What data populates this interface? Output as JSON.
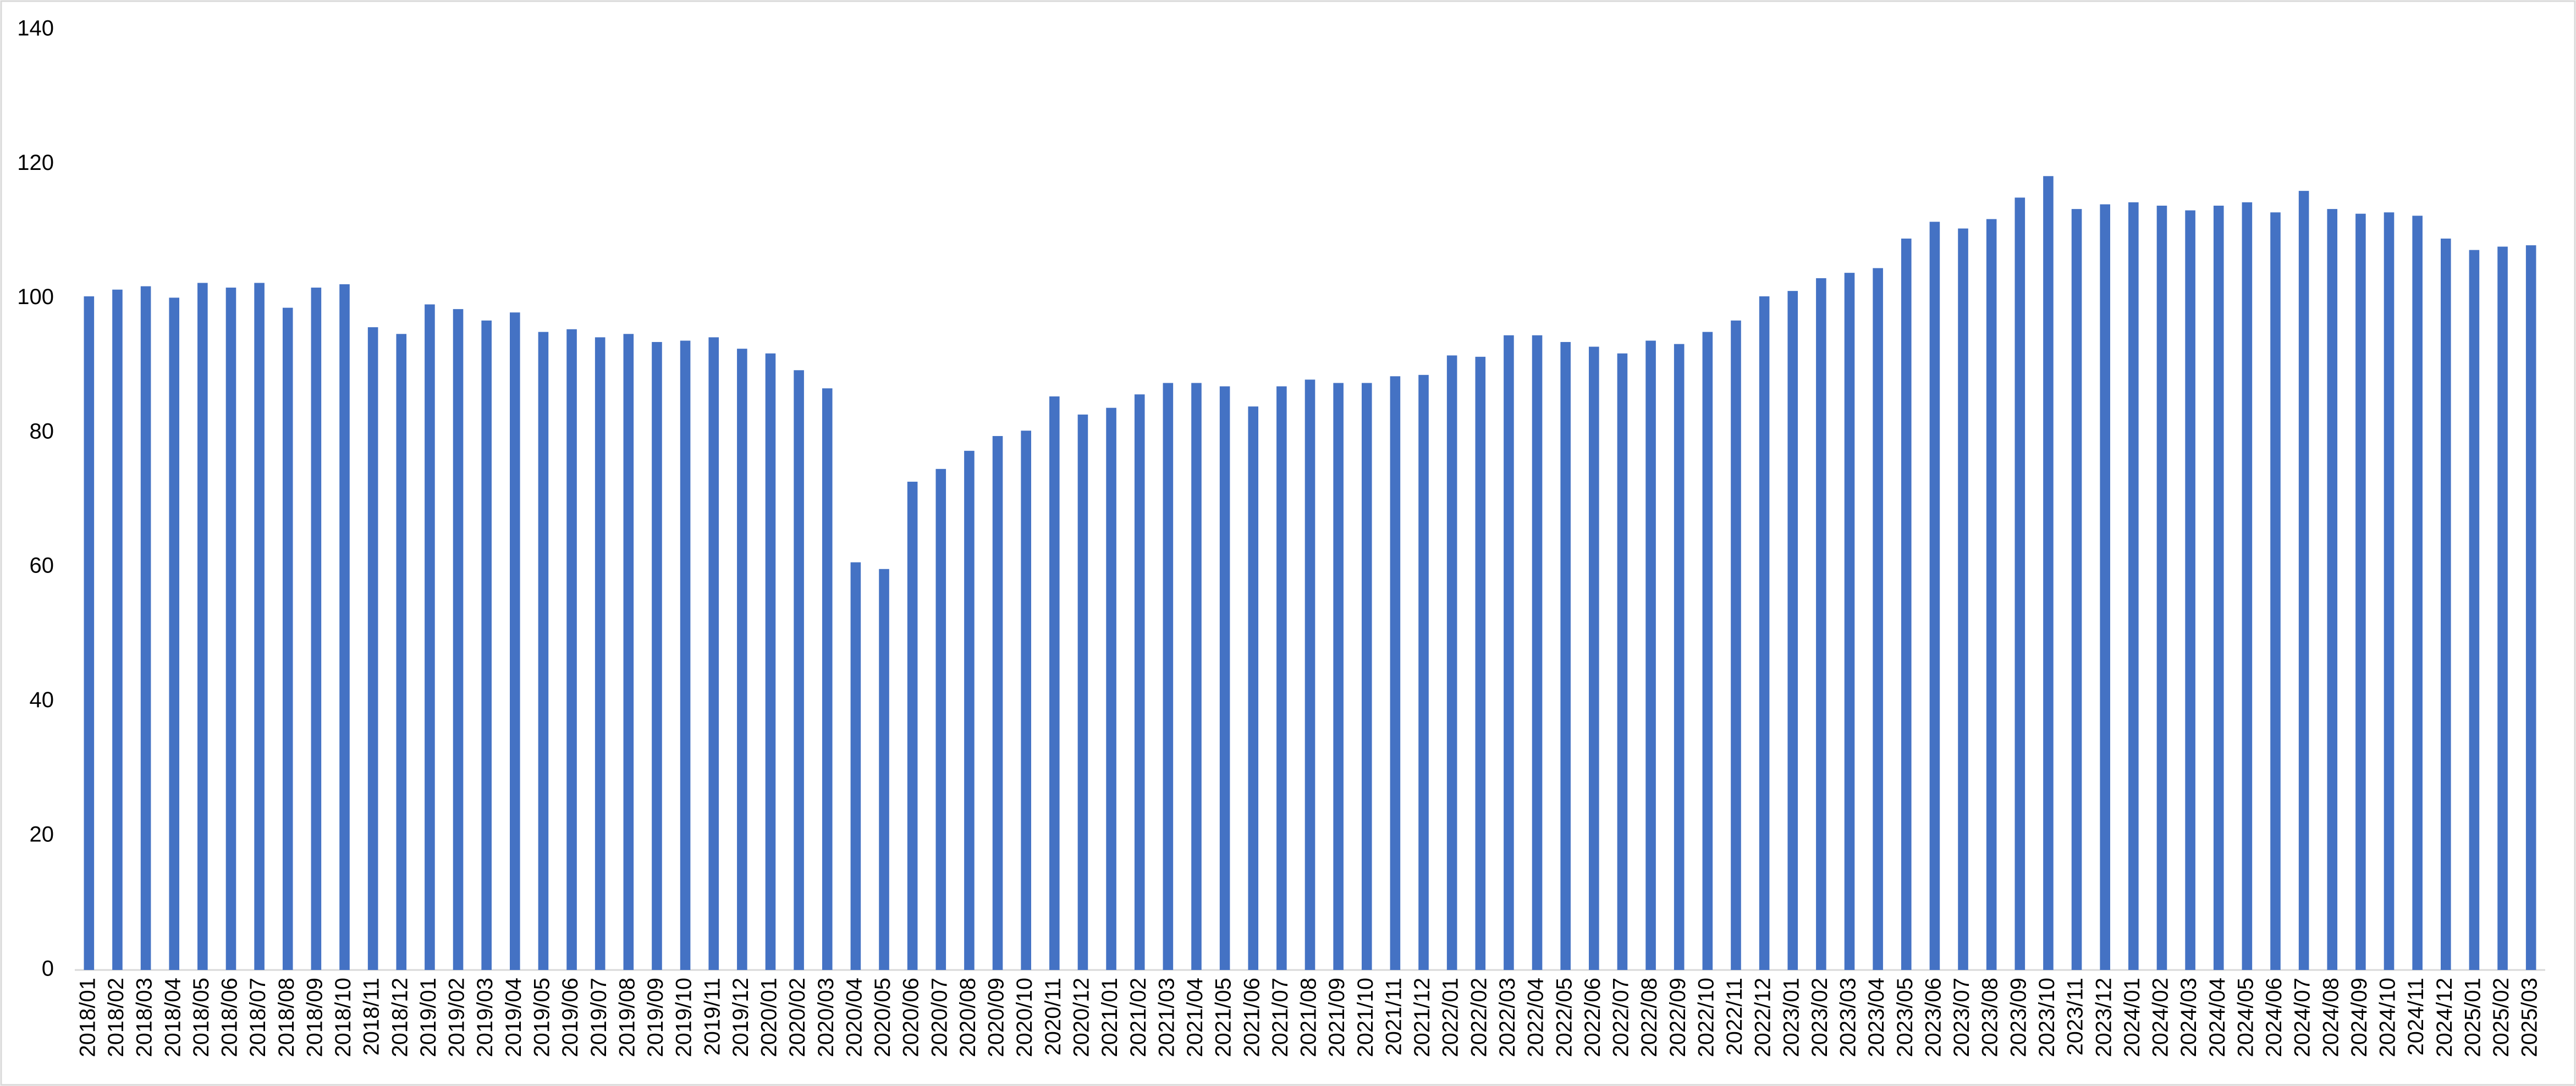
{
  "chart_data": {
    "type": "bar",
    "categories": [
      "2018/01",
      "2018/02",
      "2018/03",
      "2018/04",
      "2018/05",
      "2018/06",
      "2018/07",
      "2018/08",
      "2018/09",
      "2018/10",
      "2018/11",
      "2018/12",
      "2019/01",
      "2019/02",
      "2019/03",
      "2019/04",
      "2019/05",
      "2019/06",
      "2019/07",
      "2019/08",
      "2019/09",
      "2019/10",
      "2019/11",
      "2019/12",
      "2020/01",
      "2020/02",
      "2020/03",
      "2020/04",
      "2020/05",
      "2020/06",
      "2020/07",
      "2020/08",
      "2020/09",
      "2020/10",
      "2020/11",
      "2020/12",
      "2021/01",
      "2021/02",
      "2021/03",
      "2021/04",
      "2021/05",
      "2021/06",
      "2021/07",
      "2021/08",
      "2021/09",
      "2021/10",
      "2021/11",
      "2021/12",
      "2022/01",
      "2022/02",
      "2022/03",
      "2022/04",
      "2022/05",
      "2022/06",
      "2022/07",
      "2022/08",
      "2022/09",
      "2022/10",
      "2022/11",
      "2022/12",
      "2023/01",
      "2023/02",
      "2023/03",
      "2023/04",
      "2023/05",
      "2023/06",
      "2023/07",
      "2023/08",
      "2023/09",
      "2023/10",
      "2023/11",
      "2023/12",
      "2024/01",
      "2024/02",
      "2024/03",
      "2024/04",
      "2024/05",
      "2024/06",
      "2024/07",
      "2024/08",
      "2024/09",
      "2024/10",
      "2024/11",
      "2024/12",
      "2025/01",
      "2025/02",
      "2025/03"
    ],
    "values": [
      100.3,
      101.3,
      101.8,
      100.1,
      102.3,
      101.6,
      102.3,
      98.6,
      101.6,
      102.1,
      95.7,
      94.7,
      99.1,
      98.4,
      96.7,
      97.9,
      95.0,
      95.4,
      94.2,
      94.7,
      93.5,
      93.7,
      94.2,
      92.5,
      91.8,
      89.3,
      86.6,
      60.7,
      59.7,
      72.7,
      74.6,
      77.3,
      79.5,
      80.3,
      85.4,
      82.7,
      83.7,
      85.7,
      87.4,
      87.4,
      86.9,
      83.9,
      86.9,
      87.9,
      87.4,
      87.4,
      88.4,
      88.6,
      91.5,
      91.3,
      94.5,
      94.5,
      93.5,
      92.8,
      91.8,
      93.7,
      93.2,
      95.0,
      96.7,
      100.3,
      101.1,
      103.0,
      103.8,
      104.5,
      108.9,
      111.4,
      110.4,
      111.8,
      115.0,
      118.2,
      113.3,
      114.0,
      114.3,
      113.8,
      113.1,
      113.8,
      114.3,
      112.8,
      116.0,
      113.3,
      112.6,
      112.8,
      112.3,
      108.9,
      107.2,
      107.7,
      107.9
    ],
    "color": "#4472c4",
    "ylim": [
      0,
      140
    ],
    "yticks": [
      0,
      20,
      40,
      60,
      80,
      100,
      120,
      140
    ],
    "grid": false
  }
}
